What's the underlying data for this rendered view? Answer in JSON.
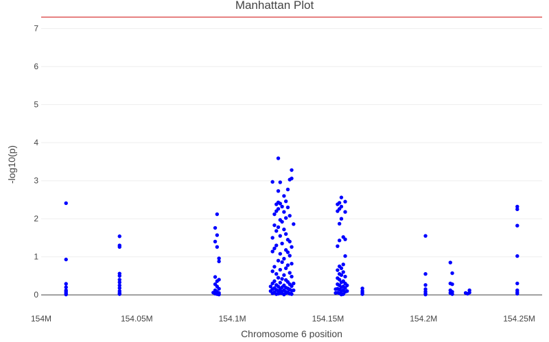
{
  "chart_data": {
    "type": "scatter",
    "title": "Manhattan Plot",
    "xlabel": "Chromosome 6 position",
    "ylabel": "-log10(p)",
    "xlim": [
      154000000,
      154262000
    ],
    "ylim": [
      -0.05,
      7.3
    ],
    "x_ticks": [
      {
        "value": 154000000,
        "label": "154M"
      },
      {
        "value": 154050000,
        "label": "154.05M"
      },
      {
        "value": 154100000,
        "label": "154.1M"
      },
      {
        "value": 154150000,
        "label": "154.15M"
      },
      {
        "value": 154200000,
        "label": "154.2M"
      },
      {
        "value": 154250000,
        "label": "154.25M"
      }
    ],
    "y_ticks": [
      {
        "value": 0,
        "label": "0"
      },
      {
        "value": 1,
        "label": "1"
      },
      {
        "value": 2,
        "label": "2"
      },
      {
        "value": 3,
        "label": "3"
      },
      {
        "value": 4,
        "label": "4"
      },
      {
        "value": 5,
        "label": "5"
      },
      {
        "value": 6,
        "label": "6"
      },
      {
        "value": 7,
        "label": "7"
      }
    ],
    "grid": true,
    "threshold": {
      "y": 7.3,
      "color": "#cc0000"
    },
    "point_color": "#0000ff",
    "zero_line_color": "#444444",
    "points": [
      [
        154013000,
        2.41
      ],
      [
        154013000,
        0.93
      ],
      [
        154013000,
        0.29
      ],
      [
        154013000,
        0.2
      ],
      [
        154013000,
        0.12
      ],
      [
        154013000,
        0.08
      ],
      [
        154013000,
        0.04
      ],
      [
        154013000,
        0.01
      ],
      [
        154041000,
        1.54
      ],
      [
        154041000,
        1.3
      ],
      [
        154041000,
        1.26
      ],
      [
        154041000,
        0.56
      ],
      [
        154041000,
        0.5
      ],
      [
        154041000,
        0.4
      ],
      [
        154041000,
        0.33
      ],
      [
        154041000,
        0.25
      ],
      [
        154041000,
        0.18
      ],
      [
        154041000,
        0.1
      ],
      [
        154041000,
        0.05
      ],
      [
        154041000,
        0.02
      ],
      [
        154092000,
        2.12
      ],
      [
        154091000,
        1.76
      ],
      [
        154092000,
        1.57
      ],
      [
        154091000,
        1.4
      ],
      [
        154092000,
        1.26
      ],
      [
        154093000,
        0.96
      ],
      [
        154093000,
        0.88
      ],
      [
        154091000,
        0.47
      ],
      [
        154093000,
        0.4
      ],
      [
        154092000,
        0.36
      ],
      [
        154091000,
        0.28
      ],
      [
        154092000,
        0.22
      ],
      [
        154093000,
        0.16
      ],
      [
        154091000,
        0.12
      ],
      [
        154092000,
        0.08
      ],
      [
        154093000,
        0.05
      ],
      [
        154091000,
        0.03
      ],
      [
        154092000,
        0.02
      ],
      [
        154093000,
        0.01
      ],
      [
        154090000,
        0.06
      ],
      [
        154124000,
        3.59
      ],
      [
        154121000,
        2.97
      ],
      [
        154125000,
        2.96
      ],
      [
        154131000,
        3.28
      ],
      [
        154131000,
        3.06
      ],
      [
        154130000,
        3.03
      ],
      [
        154129000,
        2.77
      ],
      [
        154124000,
        2.73
      ],
      [
        154127000,
        2.6
      ],
      [
        154128000,
        2.46
      ],
      [
        154124000,
        2.43
      ],
      [
        154125000,
        2.4
      ],
      [
        154123000,
        2.38
      ],
      [
        154126000,
        2.32
      ],
      [
        154129000,
        2.3
      ],
      [
        154124000,
        2.26
      ],
      [
        154123000,
        2.2
      ],
      [
        154127000,
        2.18
      ],
      [
        154122000,
        2.12
      ],
      [
        154130000,
        2.08
      ],
      [
        154128000,
        2.02
      ],
      [
        154125000,
        1.97
      ],
      [
        154126000,
        1.92
      ],
      [
        154132000,
        1.86
      ],
      [
        154122000,
        1.83
      ],
      [
        154124000,
        1.78
      ],
      [
        154127000,
        1.72
      ],
      [
        154123000,
        1.68
      ],
      [
        154128000,
        1.6
      ],
      [
        154125000,
        1.55
      ],
      [
        154121000,
        1.5
      ],
      [
        154129000,
        1.45
      ],
      [
        154130000,
        1.4
      ],
      [
        154126000,
        1.35
      ],
      [
        154123000,
        1.3
      ],
      [
        154131000,
        1.26
      ],
      [
        154122000,
        1.22
      ],
      [
        154128000,
        1.18
      ],
      [
        154121000,
        1.14
      ],
      [
        154129000,
        1.12
      ],
      [
        154125000,
        1.08
      ],
      [
        154130000,
        1.03
      ],
      [
        154127000,
        0.95
      ],
      [
        154124000,
        0.9
      ],
      [
        154126000,
        0.86
      ],
      [
        154131000,
        0.82
      ],
      [
        154129000,
        0.78
      ],
      [
        154122000,
        0.74
      ],
      [
        154128000,
        0.7
      ],
      [
        154125000,
        0.66
      ],
      [
        154121000,
        0.62
      ],
      [
        154130000,
        0.58
      ],
      [
        154123000,
        0.55
      ],
      [
        154127000,
        0.52
      ],
      [
        154131000,
        0.48
      ],
      [
        154124000,
        0.45
      ],
      [
        154126000,
        0.42
      ],
      [
        154128000,
        0.39
      ],
      [
        154122000,
        0.36
      ],
      [
        154129000,
        0.34
      ],
      [
        154125000,
        0.32
      ],
      [
        154121000,
        0.3
      ],
      [
        154130000,
        0.28
      ],
      [
        154123000,
        0.26
      ],
      [
        154127000,
        0.25
      ],
      [
        154131000,
        0.23
      ],
      [
        154124000,
        0.22
      ],
      [
        154126000,
        0.2
      ],
      [
        154128000,
        0.19
      ],
      [
        154122000,
        0.18
      ],
      [
        154129000,
        0.17
      ],
      [
        154125000,
        0.16
      ],
      [
        154121000,
        0.15
      ],
      [
        154130000,
        0.14
      ],
      [
        154123000,
        0.13
      ],
      [
        154127000,
        0.12
      ],
      [
        154131000,
        0.11
      ],
      [
        154124000,
        0.1
      ],
      [
        154126000,
        0.09
      ],
      [
        154128000,
        0.08
      ],
      [
        154122000,
        0.07
      ],
      [
        154129000,
        0.06
      ],
      [
        154125000,
        0.05
      ],
      [
        154121000,
        0.04
      ],
      [
        154130000,
        0.03
      ],
      [
        154123000,
        0.02
      ],
      [
        154127000,
        0.01
      ],
      [
        154131000,
        0.02
      ],
      [
        154124000,
        0.03
      ],
      [
        154126000,
        0.04
      ],
      [
        154128000,
        0.05
      ],
      [
        154122000,
        0.06
      ],
      [
        154129000,
        0.07
      ],
      [
        154125000,
        0.08
      ],
      [
        154120000,
        0.1
      ],
      [
        154132000,
        0.12
      ],
      [
        154120000,
        0.22
      ],
      [
        154132000,
        0.3
      ],
      [
        154157000,
        2.56
      ],
      [
        154159000,
        2.45
      ],
      [
        154156000,
        2.42
      ],
      [
        154155000,
        2.38
      ],
      [
        154157000,
        2.32
      ],
      [
        154156000,
        2.26
      ],
      [
        154155000,
        2.2
      ],
      [
        154159000,
        2.18
      ],
      [
        154157000,
        2.0
      ],
      [
        154156000,
        1.87
      ],
      [
        154158000,
        1.52
      ],
      [
        154159000,
        1.46
      ],
      [
        154156000,
        1.43
      ],
      [
        154155000,
        1.28
      ],
      [
        154159000,
        1.02
      ],
      [
        154158000,
        0.8
      ],
      [
        154156000,
        0.75
      ],
      [
        154157000,
        0.7
      ],
      [
        154155000,
        0.65
      ],
      [
        154158000,
        0.6
      ],
      [
        154156000,
        0.55
      ],
      [
        154157000,
        0.52
      ],
      [
        154159000,
        0.48
      ],
      [
        154155000,
        0.44
      ],
      [
        154156000,
        0.4
      ],
      [
        154158000,
        0.36
      ],
      [
        154157000,
        0.33
      ],
      [
        154159000,
        0.3
      ],
      [
        154155000,
        0.28
      ],
      [
        154156000,
        0.25
      ],
      [
        154158000,
        0.22
      ],
      [
        154157000,
        0.2
      ],
      [
        154159000,
        0.18
      ],
      [
        154155000,
        0.16
      ],
      [
        154156000,
        0.14
      ],
      [
        154158000,
        0.12
      ],
      [
        154157000,
        0.1
      ],
      [
        154159000,
        0.08
      ],
      [
        154155000,
        0.06
      ],
      [
        154156000,
        0.04
      ],
      [
        154158000,
        0.02
      ],
      [
        154157000,
        0.01
      ],
      [
        154154000,
        0.15
      ],
      [
        154160000,
        0.1
      ],
      [
        154154000,
        0.05
      ],
      [
        154160000,
        0.25
      ],
      [
        154168000,
        0.17
      ],
      [
        154168000,
        0.1
      ],
      [
        154168000,
        0.06
      ],
      [
        154168000,
        0.02
      ],
      [
        154201000,
        1.55
      ],
      [
        154201000,
        0.55
      ],
      [
        154201000,
        0.26
      ],
      [
        154201000,
        0.15
      ],
      [
        154201000,
        0.09
      ],
      [
        154201000,
        0.04
      ],
      [
        154201000,
        0.01
      ],
      [
        154214000,
        0.85
      ],
      [
        154215000,
        0.57
      ],
      [
        154214000,
        0.3
      ],
      [
        154215000,
        0.28
      ],
      [
        154214000,
        0.12
      ],
      [
        154215000,
        0.08
      ],
      [
        154214000,
        0.05
      ],
      [
        154215000,
        0.02
      ],
      [
        154222000,
        0.05
      ],
      [
        154224000,
        0.12
      ],
      [
        154224000,
        0.06
      ],
      [
        154223000,
        0.03
      ],
      [
        154249000,
        2.32
      ],
      [
        154249000,
        2.25
      ],
      [
        154249000,
        1.82
      ],
      [
        154249000,
        1.02
      ],
      [
        154249000,
        0.3
      ],
      [
        154249000,
        0.12
      ],
      [
        154249000,
        0.07
      ],
      [
        154249000,
        0.03
      ]
    ]
  }
}
